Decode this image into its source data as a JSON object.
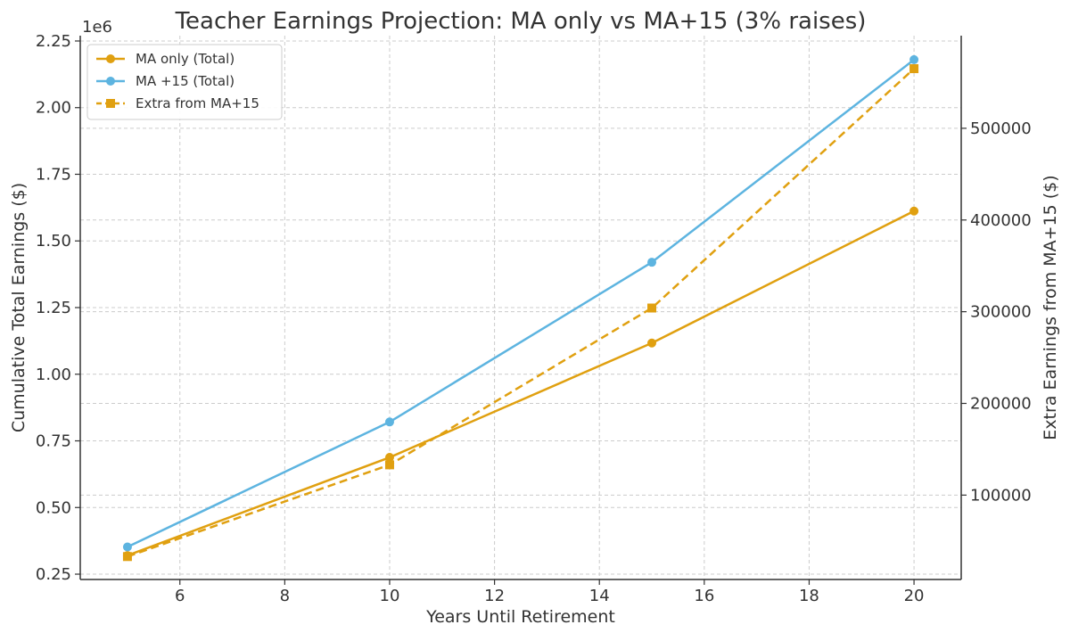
{
  "chart_data": {
    "type": "line",
    "title": "Teacher Earnings Projection: MA only vs MA+15 (3% raises)",
    "xlabel": "Years Until Retirement",
    "ylabel": "Cumulative Total Earnings ($)",
    "y2label": "Extra Earnings from MA+15 ($)",
    "y_offset_label": "1e6",
    "x": [
      5,
      10,
      15,
      20
    ],
    "xlim": [
      4.1,
      20.9
    ],
    "ylim": [
      0.23,
      2.27
    ],
    "y2lim": [
      8000,
      601000
    ],
    "x_ticks": [
      6,
      8,
      10,
      12,
      14,
      16,
      18,
      20
    ],
    "y_ticks": [
      0.25,
      0.5,
      0.75,
      1.0,
      1.25,
      1.5,
      1.75,
      2.0,
      2.25
    ],
    "y_tick_labels": [
      "0.25",
      "0.50",
      "0.75",
      "1.00",
      "1.25",
      "1.50",
      "1.75",
      "2.00",
      "2.25"
    ],
    "y2_ticks": [
      100000,
      200000,
      300000,
      400000,
      500000
    ],
    "y2_tick_labels": [
      "100000",
      "200000",
      "300000",
      "400000",
      "500000"
    ],
    "grid": true,
    "legend_position": "top-left",
    "series": [
      {
        "name": "MA only (Total)",
        "axis": "left",
        "values": [
          0.32,
          0.688,
          1.117,
          1.612
        ],
        "color": "#E0A010",
        "style": "solid",
        "marker": "circle"
      },
      {
        "name": "MA +15 (Total)",
        "axis": "left",
        "values": [
          0.352,
          0.821,
          1.42,
          2.18
        ],
        "color": "#5DB4E0",
        "style": "solid",
        "marker": "circle"
      },
      {
        "name": "Extra from MA+15",
        "axis": "right",
        "values": [
          33000,
          133000,
          304000,
          565000
        ],
        "color": "#E0A010",
        "style": "dashed",
        "marker": "square"
      }
    ]
  }
}
